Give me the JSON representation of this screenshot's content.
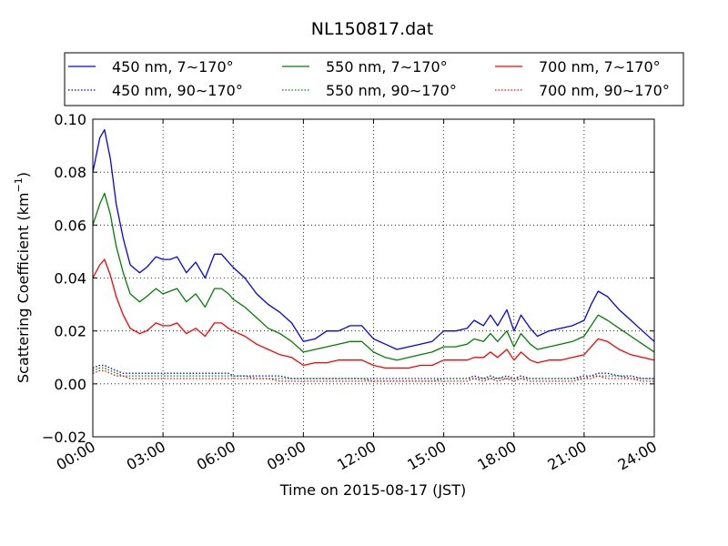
{
  "chart_data": {
    "type": "line",
    "title": "NL150817.dat",
    "xlabel": "Time on 2015-08-17 (JST)",
    "ylabel": "Scattering Coefficient (km",
    "ylabel_sup": "−1",
    "ylabel_close": ")",
    "xlim": [
      "00:00",
      "24:00"
    ],
    "ylim": [
      -0.02,
      0.1
    ],
    "x_ticks": [
      "00:00",
      "03:00",
      "06:00",
      "09:00",
      "12:00",
      "15:00",
      "18:00",
      "21:00",
      "24:00"
    ],
    "y_ticks": [
      "−0.02",
      "0.00",
      "0.02",
      "0.04",
      "0.06",
      "0.08",
      "0.10"
    ],
    "grid": true,
    "legend_position": "above-plot",
    "x_hours": [
      0,
      0.3,
      0.5,
      0.75,
      1,
      1.3,
      1.6,
      2,
      2.3,
      2.7,
      3,
      3.3,
      3.6,
      4,
      4.4,
      4.8,
      5.2,
      5.5,
      5.8,
      6,
      6.5,
      7,
      7.5,
      8,
      8.5,
      9,
      9.5,
      10,
      10.5,
      11,
      11.5,
      12,
      12.5,
      13,
      13.5,
      14,
      14.5,
      15,
      15.5,
      16,
      16.3,
      16.7,
      17,
      17.3,
      17.7,
      18,
      18.3,
      18.7,
      19,
      19.5,
      20,
      20.5,
      21,
      21.3,
      21.6,
      22,
      22.5,
      23,
      23.5,
      24
    ],
    "series": [
      {
        "name": "450 nm, 7∼170°",
        "color": "#0000ff",
        "style": "solid",
        "values": [
          0.08,
          0.093,
          0.096,
          0.085,
          0.068,
          0.055,
          0.045,
          0.042,
          0.044,
          0.048,
          0.047,
          0.047,
          0.048,
          0.042,
          0.046,
          0.04,
          0.049,
          0.049,
          0.046,
          0.044,
          0.04,
          0.034,
          0.03,
          0.027,
          0.023,
          0.016,
          0.017,
          0.02,
          0.02,
          0.022,
          0.022,
          0.017,
          0.015,
          0.013,
          0.014,
          0.015,
          0.016,
          0.02,
          0.02,
          0.021,
          0.024,
          0.022,
          0.026,
          0.022,
          0.028,
          0.02,
          0.026,
          0.021,
          0.018,
          0.02,
          0.021,
          0.022,
          0.024,
          0.03,
          0.035,
          0.033,
          0.028,
          0.024,
          0.02,
          0.016
        ]
      },
      {
        "name": "550 nm, 7∼170°",
        "color": "#008000",
        "style": "solid",
        "values": [
          0.06,
          0.068,
          0.072,
          0.064,
          0.052,
          0.042,
          0.034,
          0.031,
          0.033,
          0.036,
          0.034,
          0.035,
          0.036,
          0.031,
          0.034,
          0.029,
          0.036,
          0.036,
          0.034,
          0.032,
          0.029,
          0.025,
          0.021,
          0.019,
          0.016,
          0.012,
          0.013,
          0.014,
          0.015,
          0.016,
          0.016,
          0.012,
          0.01,
          0.009,
          0.01,
          0.011,
          0.012,
          0.014,
          0.014,
          0.015,
          0.017,
          0.016,
          0.019,
          0.016,
          0.02,
          0.014,
          0.019,
          0.015,
          0.013,
          0.014,
          0.015,
          0.016,
          0.018,
          0.022,
          0.026,
          0.024,
          0.021,
          0.018,
          0.015,
          0.012
        ]
      },
      {
        "name": "700 nm, 7∼170°",
        "color": "#ff0000",
        "style": "solid",
        "values": [
          0.04,
          0.045,
          0.047,
          0.041,
          0.033,
          0.026,
          0.021,
          0.019,
          0.02,
          0.023,
          0.022,
          0.022,
          0.023,
          0.019,
          0.021,
          0.018,
          0.023,
          0.023,
          0.021,
          0.02,
          0.018,
          0.015,
          0.013,
          0.011,
          0.01,
          0.007,
          0.008,
          0.008,
          0.009,
          0.009,
          0.009,
          0.007,
          0.006,
          0.006,
          0.006,
          0.007,
          0.007,
          0.009,
          0.009,
          0.009,
          0.01,
          0.01,
          0.012,
          0.01,
          0.013,
          0.009,
          0.012,
          0.009,
          0.008,
          0.009,
          0.009,
          0.01,
          0.011,
          0.014,
          0.017,
          0.016,
          0.013,
          0.011,
          0.01,
          0.009
        ]
      },
      {
        "name": "450 nm, 90∼170°",
        "color": "#0000ff",
        "style": "dotted",
        "values": [
          0.006,
          0.007,
          0.007,
          0.006,
          0.005,
          0.004,
          0.004,
          0.004,
          0.004,
          0.004,
          0.004,
          0.004,
          0.004,
          0.004,
          0.004,
          0.004,
          0.004,
          0.004,
          0.004,
          0.003,
          0.003,
          0.003,
          0.003,
          0.003,
          0.002,
          0.002,
          0.002,
          0.002,
          0.002,
          0.002,
          0.002,
          0.002,
          0.002,
          0.002,
          0.002,
          0.002,
          0.002,
          0.002,
          0.002,
          0.002,
          0.003,
          0.002,
          0.003,
          0.002,
          0.003,
          0.002,
          0.003,
          0.002,
          0.002,
          0.002,
          0.002,
          0.002,
          0.003,
          0.003,
          0.004,
          0.004,
          0.003,
          0.003,
          0.002,
          0.002
        ]
      },
      {
        "name": "550 nm, 90∼170°",
        "color": "#008000",
        "style": "dotted",
        "values": [
          0.005,
          0.006,
          0.006,
          0.005,
          0.004,
          0.003,
          0.003,
          0.003,
          0.003,
          0.003,
          0.003,
          0.003,
          0.003,
          0.003,
          0.003,
          0.003,
          0.003,
          0.003,
          0.003,
          0.003,
          0.003,
          0.002,
          0.002,
          0.002,
          0.002,
          0.002,
          0.002,
          0.002,
          0.002,
          0.002,
          0.002,
          0.001,
          0.001,
          0.001,
          0.001,
          0.001,
          0.001,
          0.002,
          0.002,
          0.002,
          0.002,
          0.002,
          0.002,
          0.002,
          0.002,
          0.002,
          0.002,
          0.002,
          0.002,
          0.002,
          0.002,
          0.002,
          0.002,
          0.003,
          0.003,
          0.003,
          0.003,
          0.002,
          0.002,
          0.002
        ]
      },
      {
        "name": "700 nm, 90∼170°",
        "color": "#ff0000",
        "style": "dotted",
        "values": [
          0.004,
          0.005,
          0.005,
          0.004,
          0.003,
          0.003,
          0.002,
          0.002,
          0.002,
          0.002,
          0.002,
          0.002,
          0.002,
          0.002,
          0.002,
          0.002,
          0.002,
          0.002,
          0.002,
          0.002,
          0.002,
          0.002,
          0.002,
          0.001,
          0.001,
          0.001,
          0.001,
          0.001,
          0.001,
          0.001,
          0.001,
          0.001,
          0.001,
          0.001,
          0.001,
          0.001,
          0.001,
          0.001,
          0.001,
          0.001,
          0.002,
          0.001,
          0.002,
          0.001,
          0.002,
          0.001,
          0.002,
          0.001,
          0.001,
          0.001,
          0.001,
          0.001,
          0.002,
          0.002,
          0.003,
          0.002,
          0.002,
          0.002,
          0.001,
          0.001
        ]
      }
    ]
  }
}
